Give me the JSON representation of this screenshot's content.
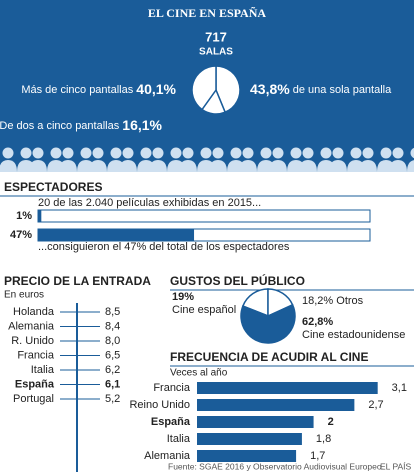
{
  "title": "EL CINE EN ESPAÑA",
  "source": "Fuente: SGAE 2016 y Observatorio Audiovisual Europeo.",
  "brand": "EL PAÍS",
  "chart_data": [
    {
      "type": "pie",
      "title": "717",
      "subtitle": "SALAS",
      "categories": [
        "de una sola pantalla",
        "De dos a cinco pantallas",
        "Más de cinco pantallas"
      ],
      "values": [
        43.8,
        16.1,
        40.1
      ],
      "value_labels": [
        "43,8%",
        "16,1%",
        "40,1%"
      ],
      "color": "#ffffff"
    },
    {
      "type": "progress",
      "title": "ESPECTADORES",
      "annotations": [
        "20 de las 2.040 películas exhibidas en 2015...",
        "...consiguieron el 47% del total de los espectadores"
      ],
      "values": [
        1,
        47
      ],
      "value_labels": [
        "1%",
        "47%"
      ],
      "xlim": [
        0,
        100
      ],
      "color": "#1a5c99"
    },
    {
      "type": "dot",
      "title": "PRECIO DE LA ENTRADA",
      "subtitle": "En euros",
      "categories": [
        "Holanda",
        "Alemania",
        "R. Unido",
        "Francia",
        "Italia",
        "España",
        "Portugal"
      ],
      "values": [
        8.5,
        8.4,
        8.0,
        6.5,
        6.2,
        6.1,
        5.2
      ],
      "value_labels": [
        "8,5",
        "8,4",
        "8,0",
        "6,5",
        "6,2",
        "6,1",
        "5,2"
      ],
      "highlight": "España",
      "color": "#1a5c99"
    },
    {
      "type": "pie",
      "title": "GUSTOS DEL PÚBLICO",
      "categories": [
        "Cine español",
        "Otros",
        "Cine estadounidense"
      ],
      "values": [
        19,
        18.2,
        62.8
      ],
      "value_labels": [
        "19%",
        "18,2%",
        "62,8%"
      ],
      "colors": [
        "#ffffff",
        "#ffffff",
        "#1a5c99"
      ]
    },
    {
      "type": "hbar",
      "title": "FRECUENCIA DE ACUDIR AL CINE",
      "subtitle": "Veces al año",
      "categories": [
        "Francia",
        "Reino Unido",
        "España",
        "Italia",
        "Alemania"
      ],
      "values": [
        3.1,
        2.7,
        2,
        1.8,
        1.7
      ],
      "value_labels": [
        "3,1",
        "2,7",
        "2",
        "1,8",
        "1,7"
      ],
      "xlim": [
        0,
        3.5
      ],
      "highlight": "España",
      "color": "#1a5c99"
    }
  ]
}
